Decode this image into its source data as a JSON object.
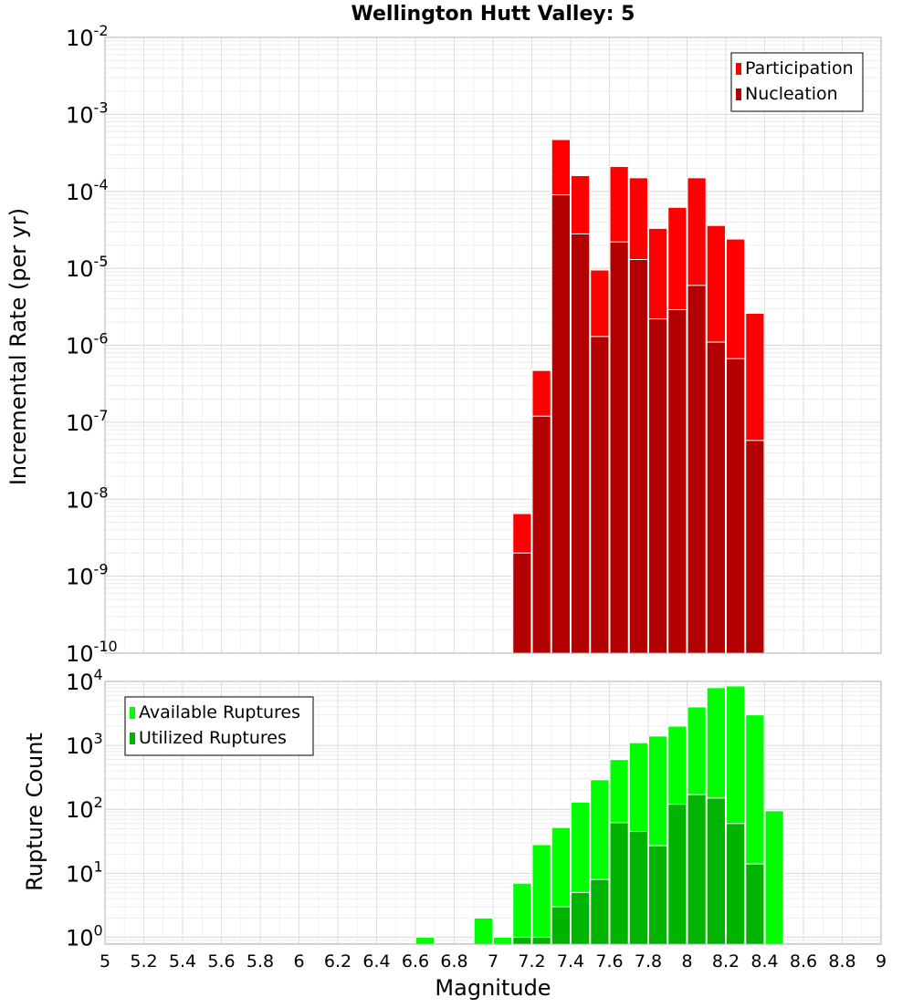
{
  "chart_data": [
    {
      "type": "bar",
      "title": "Wellington Hutt Valley: 5",
      "xlabel": "",
      "ylabel": "Incremental Rate (per yr)",
      "yscale": "log",
      "ylim": [
        1e-10,
        0.01
      ],
      "xlim": [
        5,
        9
      ],
      "grid": true,
      "legend_position": "top-right",
      "bin_width": 0.1,
      "x": [
        7.15,
        7.25,
        7.35,
        7.45,
        7.55,
        7.65,
        7.75,
        7.85,
        7.95,
        8.05,
        8.15,
        8.25,
        8.35
      ],
      "series": [
        {
          "name": "Participation",
          "color": "#ff0000",
          "values": [
            6.5e-09,
            4.7e-07,
            0.00047,
            0.00016,
            9.5e-06,
            0.00021,
            0.00015,
            3.3e-05,
            6.2e-05,
            0.00015,
            3.6e-05,
            2.4e-05,
            2.6e-06
          ]
        },
        {
          "name": "Nucleation",
          "color": "#b30000",
          "values": [
            2e-09,
            1.2e-07,
            9e-05,
            2.8e-05,
            1.3e-06,
            2.2e-05,
            1.3e-05,
            2.2e-06,
            2.9e-06,
            6e-06,
            1.1e-06,
            6.7e-07,
            5.8e-08
          ]
        }
      ],
      "y_ticks": [
        {
          "base": "10",
          "exp": "-2"
        },
        {
          "base": "10",
          "exp": "-3"
        },
        {
          "base": "10",
          "exp": "-4"
        },
        {
          "base": "10",
          "exp": "-5"
        },
        {
          "base": "10",
          "exp": "-6"
        },
        {
          "base": "10",
          "exp": "-7"
        },
        {
          "base": "10",
          "exp": "-8"
        },
        {
          "base": "10",
          "exp": "-9"
        },
        {
          "base": "10",
          "exp": "-10"
        }
      ]
    },
    {
      "type": "bar",
      "title": "",
      "xlabel": "Magnitude",
      "ylabel": "Rupture Count",
      "yscale": "log",
      "ylim": [
        0.78,
        10000
      ],
      "xlim": [
        5,
        9
      ],
      "grid": true,
      "legend_position": "top-left",
      "bin_width": 0.1,
      "x": [
        6.65,
        6.95,
        7.05,
        7.15,
        7.25,
        7.35,
        7.45,
        7.55,
        7.65,
        7.75,
        7.85,
        7.95,
        8.05,
        8.15,
        8.25,
        8.35,
        8.45
      ],
      "series": [
        {
          "name": "Available Ruptures",
          "color": "#00ff00",
          "values": [
            1,
            2,
            1,
            7,
            28,
            52,
            130,
            290,
            600,
            1100,
            1400,
            2000,
            4000,
            8000,
            8500,
            3000,
            95
          ]
        },
        {
          "name": "Utilized Ruptures",
          "color": "#00b300",
          "values": [
            0,
            0,
            0,
            1,
            1,
            3,
            5,
            8,
            62,
            45,
            27,
            120,
            170,
            150,
            60,
            14,
            0
          ]
        }
      ],
      "y_ticks": [
        {
          "base": "10",
          "exp": "4"
        },
        {
          "base": "10",
          "exp": "3"
        },
        {
          "base": "10",
          "exp": "2"
        },
        {
          "base": "10",
          "exp": "1"
        },
        {
          "base": "10",
          "exp": "0"
        }
      ],
      "x_ticks": [
        "5",
        "5.2",
        "5.4",
        "5.6",
        "5.8",
        "6",
        "6.2",
        "6.4",
        "6.6",
        "6.8",
        "7",
        "7.2",
        "7.4",
        "7.6",
        "7.8",
        "8",
        "8.2",
        "8.4",
        "8.6",
        "8.8",
        "9"
      ]
    }
  ]
}
